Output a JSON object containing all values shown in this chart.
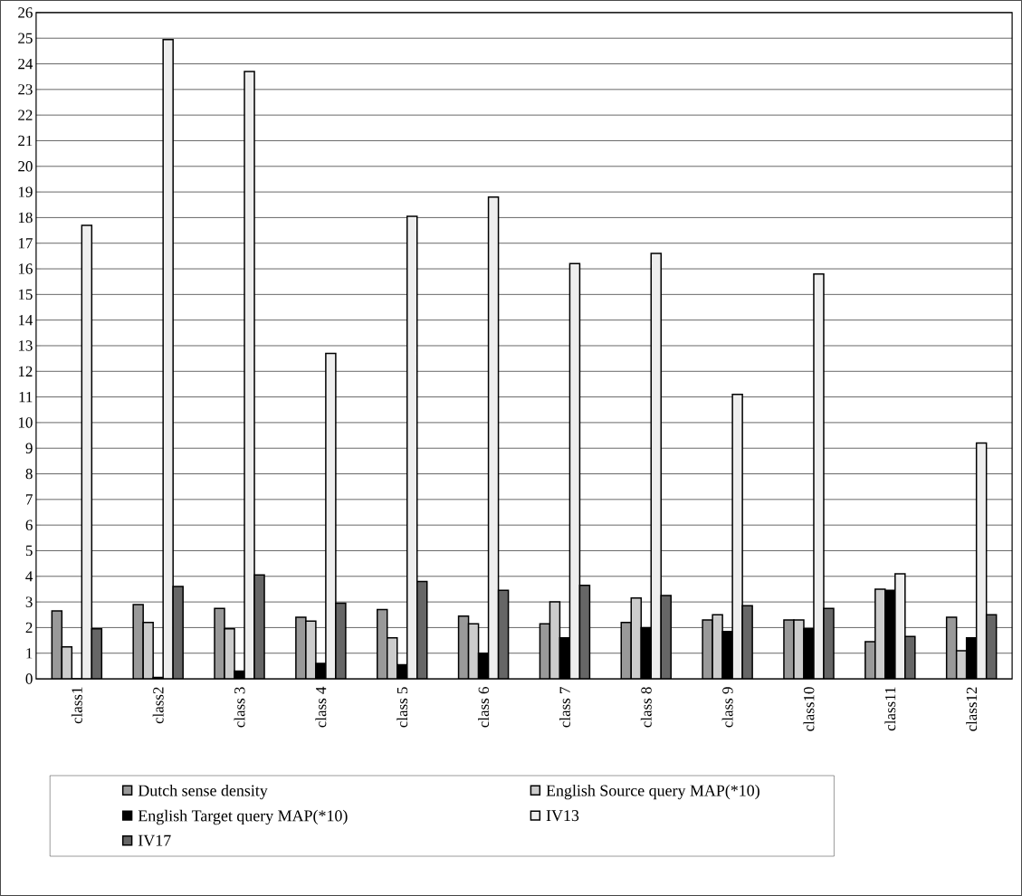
{
  "chart_data": {
    "type": "bar",
    "categories": [
      "class1",
      "class2",
      "class 3",
      "class 4",
      "class 5",
      "class 6",
      "class 7",
      "class 8",
      "class 9",
      "class10",
      "class11",
      "class12"
    ],
    "series": [
      {
        "name": "Dutch sense density",
        "color": "#999999",
        "values": [
          2.65,
          2.9,
          2.75,
          2.4,
          2.7,
          2.45,
          2.15,
          2.2,
          2.3,
          2.3,
          1.45,
          2.4
        ]
      },
      {
        "name": "English Source query MAP(*10)",
        "color": "#cccccc",
        "values": [
          1.25,
          2.2,
          1.95,
          2.25,
          1.6,
          2.15,
          3.0,
          3.15,
          2.5,
          2.3,
          3.5,
          1.1
        ]
      },
      {
        "name": "English Target query MAP(*10)",
        "color": "#000000",
        "values": [
          0,
          0.05,
          0.3,
          0.6,
          0.55,
          1.0,
          1.6,
          2.0,
          1.85,
          1.95,
          3.45,
          1.6
        ]
      },
      {
        "name": "IV13",
        "color": "#eeeeee",
        "values": [
          17.7,
          24.95,
          23.7,
          12.7,
          18.05,
          18.8,
          16.2,
          16.6,
          11.1,
          15.8,
          4.1,
          9.2
        ]
      },
      {
        "name": "IV17",
        "color": "#666666",
        "values": [
          1.95,
          3.6,
          4.05,
          2.95,
          3.8,
          3.45,
          3.65,
          3.25,
          2.85,
          2.75,
          1.65,
          2.5
        ]
      }
    ],
    "ylim": [
      0,
      26
    ],
    "yticks": [
      0,
      1,
      2,
      3,
      4,
      5,
      6,
      7,
      8,
      9,
      10,
      11,
      12,
      13,
      14,
      15,
      16,
      17,
      18,
      19,
      20,
      21,
      22,
      23,
      24,
      25,
      26
    ],
    "grid": "y",
    "legend": "bottom"
  }
}
